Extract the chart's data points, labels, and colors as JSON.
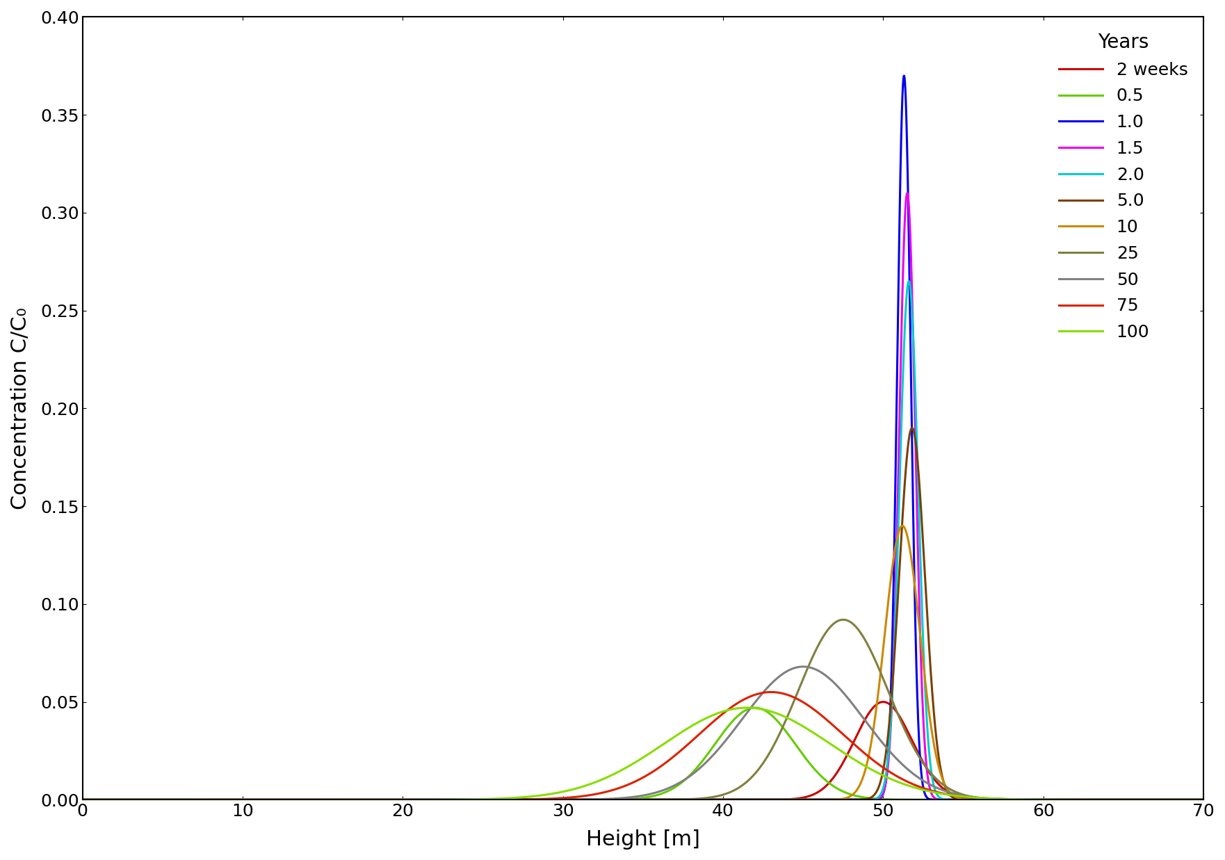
{
  "title": "",
  "xlabel": "Height [m]",
  "ylabel": "Concentration C/C₀",
  "xlim": [
    0,
    70
  ],
  "ylim": [
    0,
    0.4
  ],
  "xticks": [
    0,
    10,
    20,
    30,
    40,
    50,
    60,
    70
  ],
  "yticks": [
    0,
    0.05,
    0.1,
    0.15,
    0.2,
    0.25,
    0.3,
    0.35,
    0.4
  ],
  "legend_title": "Years",
  "series": [
    {
      "label": "2 weeks",
      "color": "#cc0000",
      "peak": 50.0,
      "sigma": 1.8
    },
    {
      "label": "0.5",
      "color": "#66cc00",
      "peak": 42.0,
      "sigma": 2.5
    },
    {
      "label": "1.0",
      "color": "#0000ee",
      "peak": 51.3,
      "sigma": 0.45
    },
    {
      "label": "1.5",
      "color": "#ee00ee",
      "peak": 51.5,
      "sigma": 0.5
    },
    {
      "label": "2.0",
      "color": "#00cccc",
      "peak": 51.6,
      "sigma": 0.55
    },
    {
      "label": "5.0",
      "color": "#7b3f00",
      "peak": 51.8,
      "sigma": 0.75
    },
    {
      "label": "10",
      "color": "#cc8800",
      "peak": 51.0,
      "sigma": 1.1
    },
    {
      "label": "25",
      "color": "#808040",
      "peak": 47.5,
      "sigma": 2.8
    },
    {
      "label": "50",
      "color": "#808080",
      "peak": 45.0,
      "sigma": 3.8
    },
    {
      "label": "75",
      "color": "#dd2200",
      "peak": 43.0,
      "sigma": 4.5
    },
    {
      "label": "100",
      "color": "#88dd00",
      "peak": 41.5,
      "sigma": 5.2
    }
  ],
  "mass": 0.1,
  "background_color": "#ffffff",
  "linewidth": 2.2,
  "fontsize_labels": 22,
  "fontsize_ticks": 18,
  "fontsize_legend": 18
}
